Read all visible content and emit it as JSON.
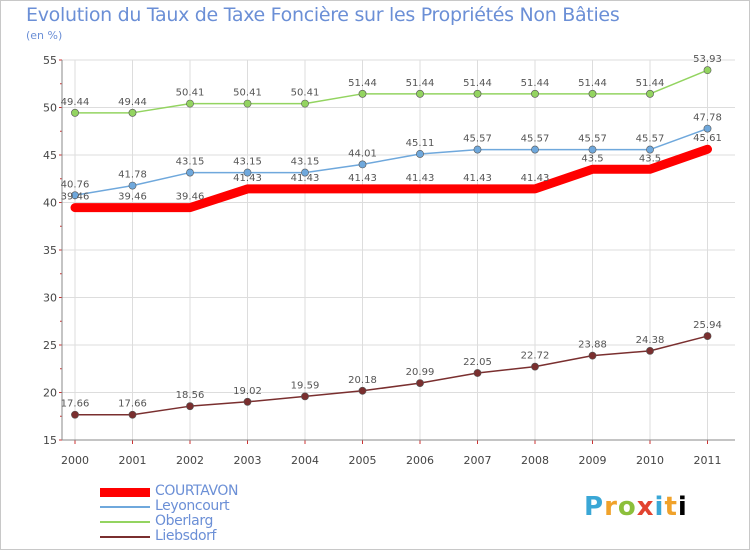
{
  "header": {
    "title": "Evolution du Taux de Taxe Foncière sur les Propriétés Non Bâties",
    "unit": "(en %)"
  },
  "logo": {
    "letters": [
      "P",
      "r",
      "o",
      "x",
      "i",
      "t",
      "i"
    ]
  },
  "chart_data": {
    "type": "line",
    "title": "Evolution du Taux de Taxe Foncière sur les Propriétés Non Bâties",
    "ylabel": "(en %)",
    "xlabel": "",
    "x": [
      "2000",
      "2001",
      "2002",
      "2003",
      "2004",
      "2005",
      "2006",
      "2007",
      "2008",
      "2009",
      "2010",
      "2011"
    ],
    "ylim": [
      15,
      55
    ],
    "yticks": [
      "15",
      "20",
      "25",
      "30",
      "35",
      "40",
      "45",
      "50",
      "55"
    ],
    "grid": true,
    "legend_position": "bottom-left",
    "series": [
      {
        "name": "COURTAVON",
        "color": "#ff0000",
        "values": [
          39.46,
          39.46,
          39.46,
          41.43,
          41.43,
          41.43,
          41.43,
          41.43,
          41.43,
          43.5,
          43.5,
          45.61
        ],
        "labels": [
          "39.46",
          "39.46",
          "39.46",
          "41.43",
          "41.43",
          "41.43",
          "41.43",
          "41.43",
          "41.43",
          "43.5",
          "43.5",
          "45.61"
        ]
      },
      {
        "name": "Leyoncourt",
        "color": "#6fa8dc",
        "values": [
          40.76,
          41.78,
          43.15,
          43.15,
          43.15,
          44.01,
          45.11,
          45.57,
          45.57,
          45.57,
          45.57,
          47.78
        ],
        "labels": [
          "40.76",
          "41.78",
          "43.15",
          "43.15",
          "43.15",
          "44.01",
          "45.11",
          "45.57",
          "45.57",
          "45.57",
          "45.57",
          "47.78"
        ]
      },
      {
        "name": "Oberlarg",
        "color": "#93d460",
        "values": [
          49.44,
          49.44,
          50.41,
          50.41,
          50.41,
          51.44,
          51.44,
          51.44,
          51.44,
          51.44,
          51.44,
          53.93
        ],
        "labels": [
          "49.44",
          "49.44",
          "50.41",
          "50.41",
          "50.41",
          "51.44",
          "51.44",
          "51.44",
          "51.44",
          "51.44",
          "51.44",
          "53.93"
        ]
      },
      {
        "name": "Liebsdorf",
        "color": "#7a2f2f",
        "values": [
          17.66,
          17.66,
          18.56,
          19.02,
          19.59,
          20.18,
          20.99,
          22.05,
          22.72,
          23.88,
          24.38,
          25.94
        ],
        "labels": [
          "17.66",
          "17.66",
          "18.56",
          "19.02",
          "19.59",
          "20.18",
          "20.99",
          "22.05",
          "22.72",
          "23.88",
          "24.38",
          "25.94"
        ]
      }
    ]
  }
}
